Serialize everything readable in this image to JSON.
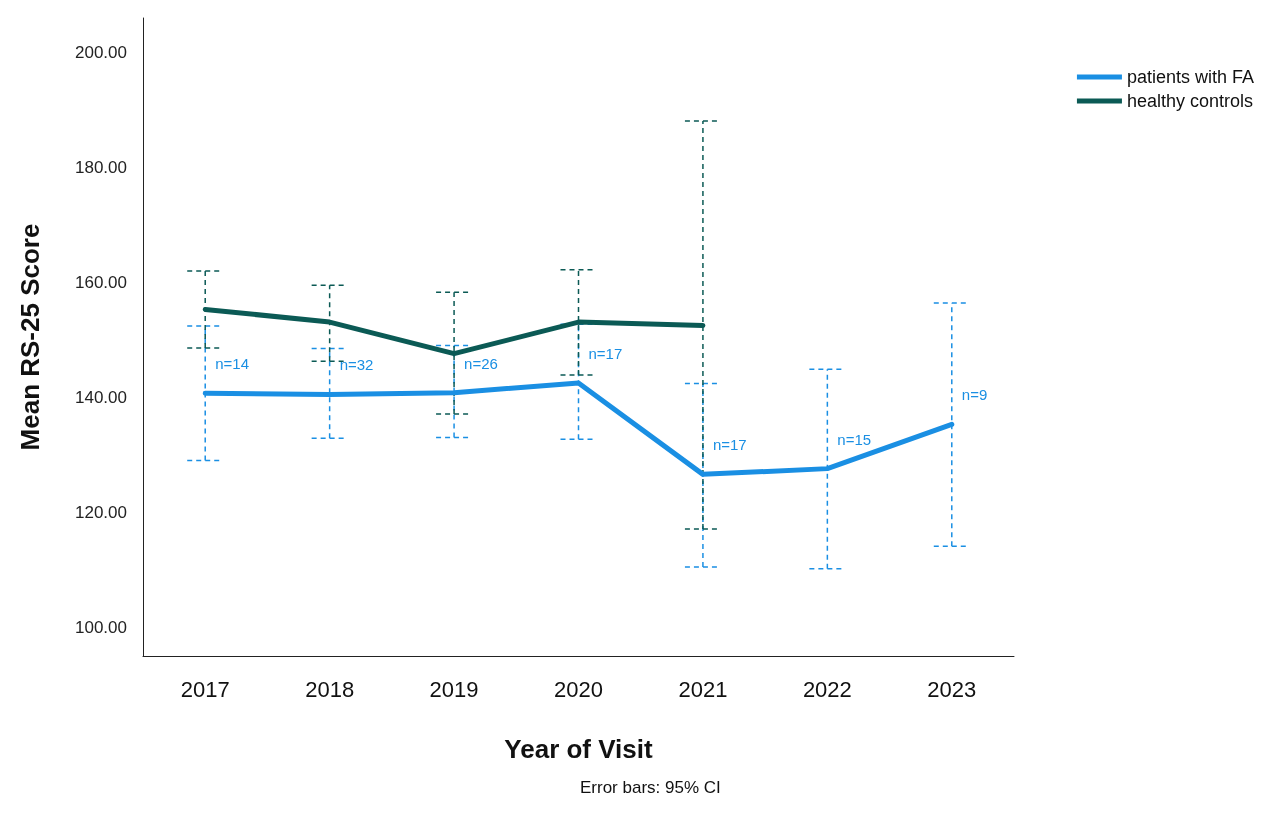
{
  "chart_data": {
    "type": "line",
    "xlabel": "Year of Visit",
    "ylabel": "Mean RS-25 Score",
    "categories": [
      "2017",
      "2018",
      "2019",
      "2020",
      "2021",
      "2022",
      "2023"
    ],
    "series": [
      {
        "name": "patients with FA",
        "color": "#1a8fe3",
        "values": [
          140.7,
          140.5,
          140.8,
          142.5,
          126.6,
          127.6,
          135.3
        ],
        "errors": [
          [
            129.0,
            152.4
          ],
          [
            132.9,
            148.5
          ],
          [
            133.0,
            149.0
          ],
          [
            132.7,
            152.7
          ],
          [
            110.5,
            142.4
          ],
          [
            110.2,
            144.9
          ],
          [
            114.1,
            156.4
          ]
        ]
      },
      {
        "name": "healthy controls",
        "color": "#0b5a55",
        "values": [
          155.3,
          153.1,
          147.6,
          153.1,
          152.5,
          null,
          null
        ],
        "errors": [
          [
            148.6,
            162.0
          ],
          [
            146.3,
            159.5
          ],
          [
            137.1,
            158.3
          ],
          [
            143.9,
            162.2
          ],
          [
            117.1,
            188.1
          ],
          null,
          null
        ]
      }
    ],
    "ylim": [
      95,
      206
    ],
    "yticks": [
      {
        "value": 100,
        "label": "100.00"
      },
      {
        "value": 120,
        "label": "120.00"
      },
      {
        "value": 140,
        "label": "140.00"
      },
      {
        "value": 160,
        "label": "160.00"
      },
      {
        "value": 180,
        "label": "180.00"
      },
      {
        "value": 200,
        "label": "200.00"
      }
    ],
    "grid": false,
    "legend": "top right",
    "marker": "none",
    "line_style": "solid",
    "annotations": [
      {
        "text": "n=14",
        "x": "2017",
        "y": 140.7
      },
      {
        "text": "n=32",
        "x": "2018",
        "y": 140.5
      },
      {
        "text": "n=26",
        "x": "2019",
        "y": 140.8
      },
      {
        "text": "n=17",
        "x": "2020",
        "y": 142.5
      },
      {
        "text": "n=17",
        "x": "2021",
        "y": 126.6
      },
      {
        "text": "n=15",
        "x": "2022",
        "y": 127.6
      },
      {
        "text": "n=9",
        "x": "2023",
        "y": 135.3
      },
      "Error bars: 95% CI"
    ]
  }
}
